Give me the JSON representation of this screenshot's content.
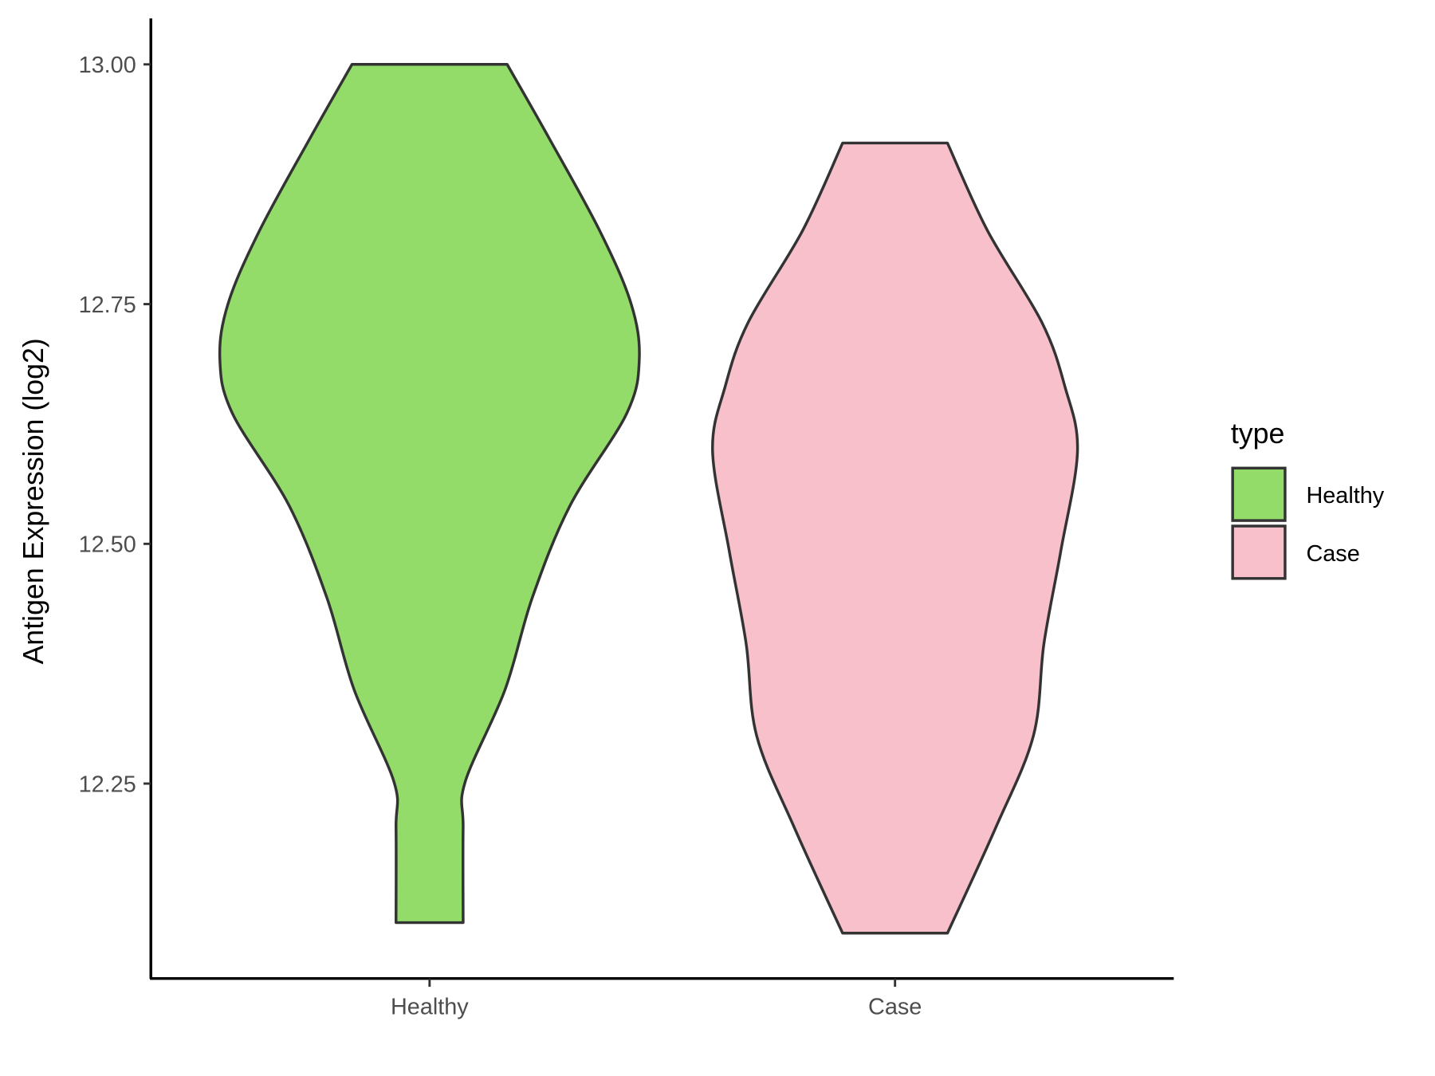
{
  "chart_data": {
    "type": "violin",
    "ylabel": "Antigen Expression (log2)",
    "xlabel": "",
    "categories": [
      "Healthy",
      "Case"
    ],
    "ylim": [
      12.05,
      13.05
    ],
    "yticks": [
      "12.25",
      "12.50",
      "12.75",
      "13.00"
    ],
    "grid": false,
    "legend": {
      "title": "type",
      "position": "right",
      "entries": [
        "Healthy",
        "Case"
      ]
    },
    "series": [
      {
        "name": "Healthy",
        "color": "#93DC6A",
        "y": [
          13.0,
          12.923,
          12.827,
          12.751,
          12.693,
          12.636,
          12.54,
          12.444,
          12.348,
          12.252,
          12.204,
          12.105
        ],
        "density": [
          0.37,
          0.57,
          0.81,
          0.96,
          1.0,
          0.94,
          0.67,
          0.49,
          0.36,
          0.17,
          0.16,
          0.16
        ]
      },
      {
        "name": "Case",
        "color": "#F7C0CB",
        "y": [
          12.918,
          12.827,
          12.731,
          12.664,
          12.597,
          12.492,
          12.396,
          12.3,
          12.204,
          12.094
        ],
        "density": [
          0.25,
          0.44,
          0.7,
          0.81,
          0.87,
          0.79,
          0.71,
          0.66,
          0.48,
          0.25
        ]
      }
    ]
  }
}
